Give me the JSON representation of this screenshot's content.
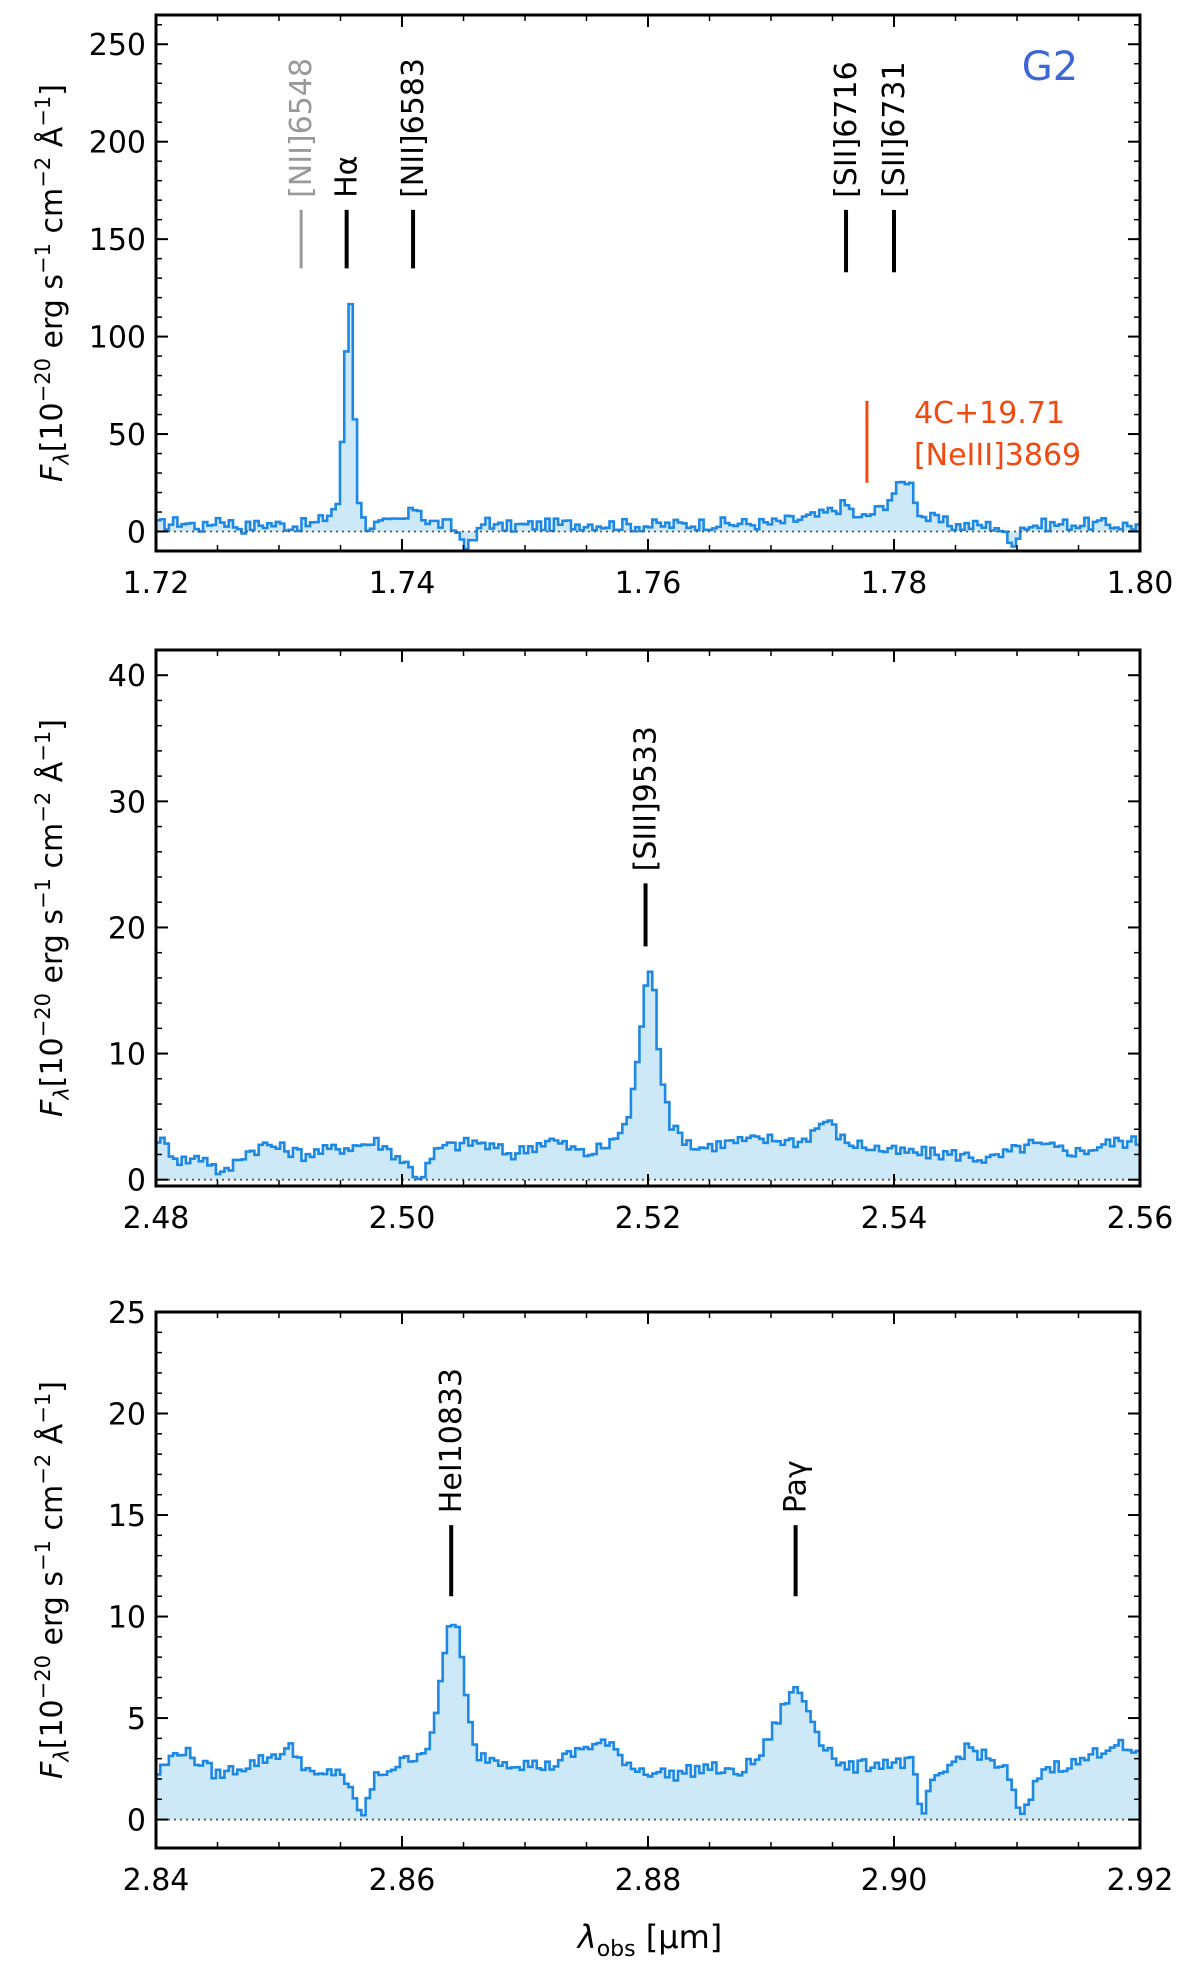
{
  "figure_label": "G2",
  "xlabel_symbol": "λ",
  "xlabel_sub": "obs",
  "xlabel_unit": " [μm]",
  "ylabel": {
    "F": "F",
    "sub": "λ",
    "pre": "[10",
    "exp1": "−20",
    "units1": " erg s",
    "exp2": "−1",
    "units2": " cm",
    "exp3": "−2",
    "units3": " Å",
    "exp4": "−1",
    "close": "]"
  },
  "colors": {
    "spectrum": "#1e88e5",
    "fill": "#cde9f7",
    "line_marker": "#000000",
    "line_marker_dim": "#999999",
    "foreground_source": "#f04a10",
    "figure_label": "#3d66d6"
  },
  "chart_data": [
    {
      "type": "line",
      "style": "step-filled",
      "xlim": [
        1.72,
        1.8
      ],
      "ylim": [
        -10,
        265
      ],
      "xticks": [
        "1.72",
        "1.74",
        "1.76",
        "1.78",
        "1.80"
      ],
      "yticks": [
        "0",
        "50",
        "100",
        "150",
        "200",
        "250"
      ],
      "xtick_values": [
        1.72,
        1.74,
        1.76,
        1.78,
        1.8
      ],
      "ytick_values": [
        0,
        50,
        100,
        150,
        200,
        250
      ],
      "baseline": 0,
      "lines": [
        {
          "label": "[NII]6548",
          "x": 1.7318,
          "tick_y": [
            165,
            135
          ],
          "dim": true
        },
        {
          "label": "Hα",
          "x": 1.7355,
          "tick_y": [
            165,
            135
          ]
        },
        {
          "label": "[NII]6583",
          "x": 1.7409,
          "tick_y": [
            165,
            135
          ]
        },
        {
          "label": "[SII]6716",
          "x": 1.7761,
          "tick_y": [
            165,
            133
          ]
        },
        {
          "label": "[SII]6731",
          "x": 1.78,
          "tick_y": [
            165,
            133
          ]
        }
      ],
      "foreground_line": {
        "label_top": "4C+19.71",
        "label_bottom": "[NeIII]3869",
        "x": 1.7778,
        "tick_y": [
          67,
          25
        ]
      },
      "anchors": [
        [
          1.72,
          3
        ],
        [
          1.722,
          5
        ],
        [
          1.724,
          2
        ],
        [
          1.725,
          7
        ],
        [
          1.727,
          2
        ],
        [
          1.729,
          4
        ],
        [
          1.731,
          3
        ],
        [
          1.733,
          4
        ],
        [
          1.734,
          8
        ],
        [
          1.7348,
          15
        ],
        [
          1.7351,
          40
        ],
        [
          1.7354,
          80
        ],
        [
          1.7357,
          130
        ],
        [
          1.736,
          100
        ],
        [
          1.7363,
          30
        ],
        [
          1.7366,
          12
        ],
        [
          1.737,
          3
        ],
        [
          1.739,
          4
        ],
        [
          1.7405,
          7
        ],
        [
          1.7412,
          14
        ],
        [
          1.742,
          5
        ],
        [
          1.744,
          3
        ],
        [
          1.7455,
          -8
        ],
        [
          1.7465,
          2
        ],
        [
          1.747,
          8
        ],
        [
          1.7475,
          2
        ],
        [
          1.75,
          3
        ],
        [
          1.755,
          4
        ],
        [
          1.76,
          3
        ],
        [
          1.765,
          4
        ],
        [
          1.77,
          4
        ],
        [
          1.774,
          8
        ],
        [
          1.7761,
          14
        ],
        [
          1.7772,
          6
        ],
        [
          1.779,
          12
        ],
        [
          1.78,
          20
        ],
        [
          1.7812,
          28
        ],
        [
          1.7822,
          8
        ],
        [
          1.785,
          3
        ],
        [
          1.7885,
          3
        ],
        [
          1.7895,
          -7
        ],
        [
          1.7905,
          3
        ],
        [
          1.795,
          4
        ],
        [
          1.8,
          3
        ]
      ]
    },
    {
      "type": "line",
      "style": "step-filled",
      "xlim": [
        2.48,
        2.56
      ],
      "ylim": [
        -0.5,
        42
      ],
      "xticks": [
        "2.48",
        "2.50",
        "2.52",
        "2.54",
        "2.56"
      ],
      "yticks": [
        "0",
        "10",
        "20",
        "30",
        "40"
      ],
      "xtick_values": [
        2.48,
        2.5,
        2.52,
        2.54,
        2.56
      ],
      "ytick_values": [
        0,
        10,
        20,
        30,
        40
      ],
      "baseline": 0,
      "lines": [
        {
          "label": "[SIII]9533",
          "x": 2.5198,
          "tick_y": [
            23.5,
            18.5
          ]
        }
      ],
      "anchors": [
        [
          2.48,
          3.5
        ],
        [
          2.482,
          1.5
        ],
        [
          2.484,
          1.8
        ],
        [
          2.4855,
          0.3
        ],
        [
          2.487,
          2
        ],
        [
          2.489,
          2.8
        ],
        [
          2.492,
          2
        ],
        [
          2.495,
          2.5
        ],
        [
          2.498,
          3
        ],
        [
          2.5,
          1.6
        ],
        [
          2.5015,
          0.1
        ],
        [
          2.503,
          2.5
        ],
        [
          2.506,
          3
        ],
        [
          2.509,
          2
        ],
        [
          2.512,
          3.2
        ],
        [
          2.515,
          2
        ],
        [
          2.517,
          2.8
        ],
        [
          2.5185,
          5
        ],
        [
          2.5192,
          10
        ],
        [
          2.5198,
          15
        ],
        [
          2.5204,
          17
        ],
        [
          2.521,
          9
        ],
        [
          2.522,
          4
        ],
        [
          2.524,
          2.5
        ],
        [
          2.527,
          3
        ],
        [
          2.53,
          3.2
        ],
        [
          2.5325,
          3
        ],
        [
          2.5345,
          4.8
        ],
        [
          2.536,
          3
        ],
        [
          2.54,
          2.2
        ],
        [
          2.545,
          2
        ],
        [
          2.548,
          1.6
        ],
        [
          2.551,
          2.8
        ],
        [
          2.555,
          2.2
        ],
        [
          2.558,
          3
        ],
        [
          2.56,
          3
        ]
      ]
    },
    {
      "type": "line",
      "style": "step-filled",
      "xlim": [
        2.84,
        2.92
      ],
      "ylim": [
        -1.4,
        25
      ],
      "xticks": [
        "2.84",
        "2.86",
        "2.88",
        "2.90",
        "2.92"
      ],
      "yticks": [
        "0",
        "5",
        "10",
        "15",
        "20",
        "25"
      ],
      "xtick_values": [
        2.84,
        2.86,
        2.88,
        2.9,
        2.92
      ],
      "ytick_values": [
        0,
        5,
        10,
        15,
        20,
        25
      ],
      "baseline": 0,
      "lines": [
        {
          "label": "HeI10833",
          "x": 2.864,
          "tick_y": [
            14.5,
            11.0
          ]
        },
        {
          "label": "Paγ",
          "x": 2.892,
          "tick_y": [
            14.5,
            11.0
          ]
        }
      ],
      "anchors": [
        [
          2.84,
          2.2
        ],
        [
          2.842,
          3.5
        ],
        [
          2.845,
          2.2
        ],
        [
          2.848,
          2.8
        ],
        [
          2.851,
          3.5
        ],
        [
          2.853,
          2
        ],
        [
          2.855,
          2.5
        ],
        [
          2.8567,
          0.1
        ],
        [
          2.858,
          2.2
        ],
        [
          2.86,
          2.8
        ],
        [
          2.862,
          3.5
        ],
        [
          2.8628,
          5
        ],
        [
          2.8634,
          8
        ],
        [
          2.864,
          10
        ],
        [
          2.8646,
          9.3
        ],
        [
          2.8652,
          6
        ],
        [
          2.866,
          3.2
        ],
        [
          2.869,
          2.8
        ],
        [
          2.872,
          2.6
        ],
        [
          2.875,
          3.6
        ],
        [
          2.8765,
          3.8
        ],
        [
          2.879,
          2.5
        ],
        [
          2.882,
          2.2
        ],
        [
          2.885,
          2.6
        ],
        [
          2.887,
          2.2
        ],
        [
          2.889,
          3
        ],
        [
          2.8905,
          4.8
        ],
        [
          2.8915,
          6.2
        ],
        [
          2.8922,
          6.4
        ],
        [
          2.893,
          5.5
        ],
        [
          2.894,
          4
        ],
        [
          2.896,
          2.5
        ],
        [
          2.899,
          2.8
        ],
        [
          2.9015,
          2.8
        ],
        [
          2.9023,
          0
        ],
        [
          2.903,
          1.6
        ],
        [
          2.906,
          3.6
        ],
        [
          2.909,
          2.5
        ],
        [
          2.9105,
          0
        ],
        [
          2.912,
          2.5
        ],
        [
          2.915,
          2.8
        ],
        [
          2.918,
          3.8
        ],
        [
          2.92,
          3
        ]
      ]
    }
  ]
}
